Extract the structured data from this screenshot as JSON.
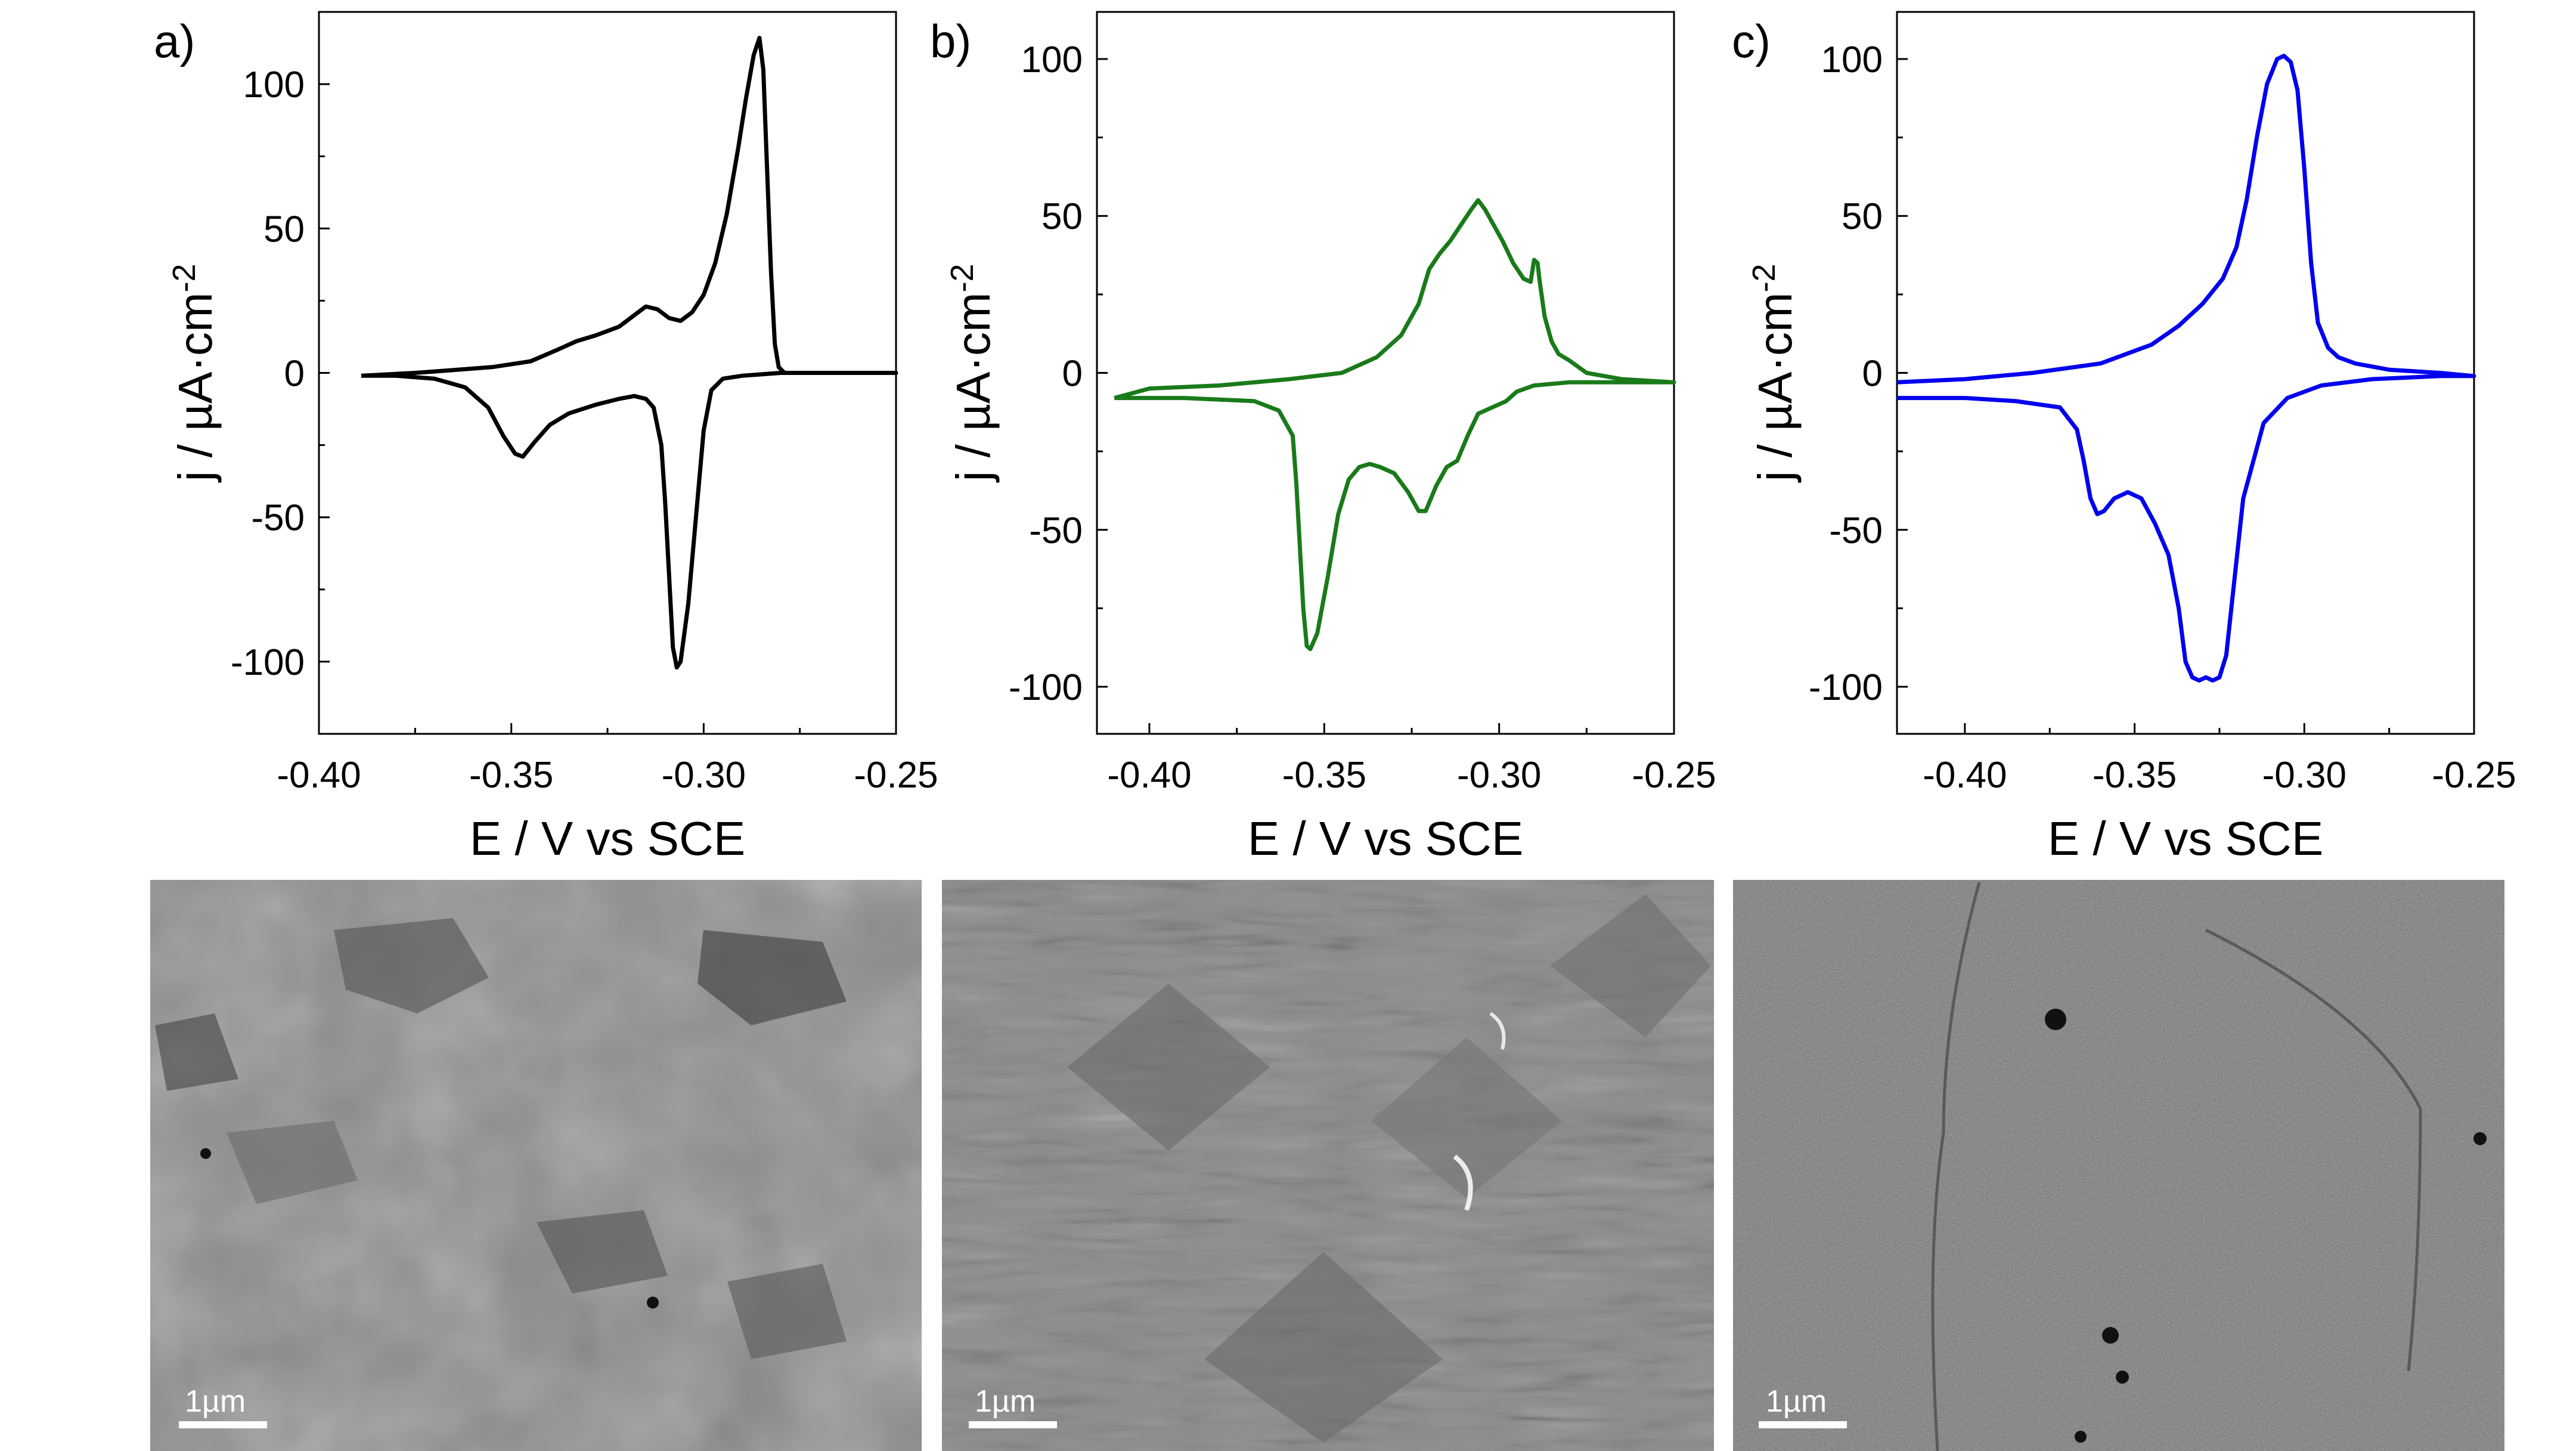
{
  "panels": [
    {
      "label": "a)"
    },
    {
      "label": "b)"
    },
    {
      "label": "c)"
    }
  ],
  "scale_bar_label": "1µm",
  "colors": {
    "series": [
      "#000000",
      "#1a7a1a",
      "#0000ee"
    ],
    "axes": "#000000"
  },
  "chart_data": [
    {
      "type": "line",
      "title": "a)",
      "xlabel": "E / V vs SCE",
      "ylabel": "j / µA·cm-2",
      "xlim": [
        -0.4,
        -0.25
      ],
      "ylim": [
        -125,
        125
      ],
      "xticks": [
        -0.4,
        -0.35,
        -0.3,
        -0.25
      ],
      "xtick_labels": [
        "-0.40",
        "-0.35",
        "-0.30",
        "-0.25"
      ],
      "yticks": [
        100,
        50,
        0,
        -50,
        -100
      ],
      "ytick_labels": [
        "100",
        "50",
        "0",
        "-50",
        "-100"
      ],
      "grid": false,
      "series": [
        {
          "color": "#000000",
          "x": [
            -0.389,
            -0.375,
            -0.365,
            -0.355,
            -0.345,
            -0.338,
            -0.333,
            -0.328,
            -0.322,
            -0.318,
            -0.315,
            -0.312,
            -0.309,
            -0.306,
            -0.303,
            -0.3,
            -0.297,
            -0.294,
            -0.291,
            -0.289,
            -0.287,
            -0.2855,
            -0.2845,
            -0.2835,
            -0.2825,
            -0.2815,
            -0.2805,
            -0.279,
            -0.27,
            -0.26,
            -0.25,
            -0.26,
            -0.27,
            -0.28,
            -0.29,
            -0.295,
            -0.298,
            -0.3,
            -0.302,
            -0.304,
            -0.306,
            -0.307,
            -0.308,
            -0.309,
            -0.31,
            -0.311,
            -0.313,
            -0.315,
            -0.318,
            -0.322,
            -0.328,
            -0.335,
            -0.34,
            -0.344,
            -0.347,
            -0.349,
            -0.352,
            -0.356,
            -0.362,
            -0.37,
            -0.38,
            -0.389
          ],
          "y": [
            -1,
            0,
            1,
            2,
            4,
            8,
            11,
            13,
            16,
            20,
            23,
            22,
            19,
            18,
            21,
            27,
            38,
            55,
            78,
            95,
            110,
            116,
            105,
            70,
            35,
            10,
            2,
            0,
            0,
            0,
            0,
            0,
            0,
            0,
            -1,
            -2,
            -6,
            -20,
            -50,
            -80,
            -100,
            -102,
            -95,
            -70,
            -45,
            -25,
            -12,
            -9,
            -8,
            -9,
            -11,
            -14,
            -18,
            -24,
            -29,
            -28,
            -22,
            -12,
            -5,
            -2,
            -1,
            -1
          ]
        }
      ]
    },
    {
      "type": "line",
      "title": "b)",
      "xlabel": "E / V vs SCE",
      "ylabel": "j / µA·cm-2",
      "xlim": [
        -0.415,
        -0.25
      ],
      "ylim": [
        -115,
        115
      ],
      "xticks": [
        -0.4,
        -0.35,
        -0.3,
        -0.25
      ],
      "xtick_labels": [
        "-0.40",
        "-0.35",
        "-0.30",
        "-0.25"
      ],
      "yticks": [
        100,
        50,
        0,
        -50,
        -100
      ],
      "ytick_labels": [
        "100",
        "50",
        "0",
        "-50",
        "-100"
      ],
      "grid": false,
      "series": [
        {
          "color": "#1a7a1a",
          "x": [
            -0.41,
            -0.4,
            -0.38,
            -0.36,
            -0.345,
            -0.335,
            -0.328,
            -0.323,
            -0.32,
            -0.317,
            -0.314,
            -0.311,
            -0.308,
            -0.306,
            -0.304,
            -0.302,
            -0.299,
            -0.296,
            -0.293,
            -0.291,
            -0.29,
            -0.289,
            -0.2885,
            -0.287,
            -0.285,
            -0.283,
            -0.28,
            -0.275,
            -0.265,
            -0.25,
            -0.265,
            -0.28,
            -0.29,
            -0.295,
            -0.298,
            -0.302,
            -0.306,
            -0.309,
            -0.312,
            -0.315,
            -0.318,
            -0.321,
            -0.323,
            -0.326,
            -0.33,
            -0.334,
            -0.337,
            -0.34,
            -0.343,
            -0.346,
            -0.349,
            -0.352,
            -0.354,
            -0.355,
            -0.356,
            -0.357,
            -0.358,
            -0.359,
            -0.363,
            -0.37,
            -0.39,
            -0.41
          ],
          "y": [
            -8,
            -5,
            -4,
            -2,
            0,
            5,
            12,
            22,
            33,
            38,
            42,
            47,
            52,
            55,
            52,
            48,
            42,
            35,
            30,
            29,
            36,
            35,
            30,
            18,
            10,
            6,
            4,
            0,
            -2,
            -3,
            -3,
            -3,
            -4,
            -6,
            -9,
            -11,
            -13,
            -20,
            -28,
            -30,
            -36,
            -44,
            -44,
            -38,
            -32,
            -30,
            -29,
            -30,
            -34,
            -45,
            -65,
            -83,
            -88,
            -87,
            -75,
            -55,
            -35,
            -20,
            -12,
            -9,
            -8,
            -8
          ]
        }
      ]
    },
    {
      "type": "line",
      "title": "c)",
      "xlabel": "E / V vs SCE",
      "ylabel": "j / µA·cm-2",
      "xlim": [
        -0.42,
        -0.25
      ],
      "ylim": [
        -115,
        115
      ],
      "xticks": [
        -0.4,
        -0.35,
        -0.3,
        -0.25
      ],
      "xtick_labels": [
        "-0.40",
        "-0.35",
        "-0.30",
        "-0.25"
      ],
      "yticks": [
        100,
        50,
        0,
        -50,
        -100
      ],
      "ytick_labels": [
        "100",
        "50",
        "0",
        "-50",
        "-100"
      ],
      "grid": false,
      "series": [
        {
          "color": "#0000ee",
          "x": [
            -0.42,
            -0.4,
            -0.38,
            -0.36,
            -0.345,
            -0.337,
            -0.33,
            -0.324,
            -0.32,
            -0.317,
            -0.314,
            -0.311,
            -0.308,
            -0.306,
            -0.304,
            -0.302,
            -0.3,
            -0.298,
            -0.296,
            -0.293,
            -0.29,
            -0.285,
            -0.275,
            -0.26,
            -0.25,
            -0.26,
            -0.28,
            -0.295,
            -0.305,
            -0.312,
            -0.318,
            -0.321,
            -0.323,
            -0.325,
            -0.327,
            -0.329,
            -0.331,
            -0.333,
            -0.335,
            -0.337,
            -0.34,
            -0.344,
            -0.348,
            -0.352,
            -0.356,
            -0.359,
            -0.361,
            -0.363,
            -0.365,
            -0.367,
            -0.372,
            -0.385,
            -0.4,
            -0.42
          ],
          "y": [
            -3,
            -2,
            0,
            3,
            9,
            15,
            22,
            30,
            40,
            55,
            75,
            92,
            100,
            101,
            99,
            90,
            65,
            35,
            16,
            8,
            5,
            3,
            1,
            0,
            -1,
            -1,
            -2,
            -4,
            -8,
            -16,
            -40,
            -70,
            -90,
            -97,
            -98,
            -97,
            -98,
            -97,
            -92,
            -75,
            -58,
            -48,
            -40,
            -38,
            -40,
            -44,
            -45,
            -40,
            -28,
            -18,
            -11,
            -9,
            -8,
            -8
          ]
        }
      ]
    }
  ]
}
